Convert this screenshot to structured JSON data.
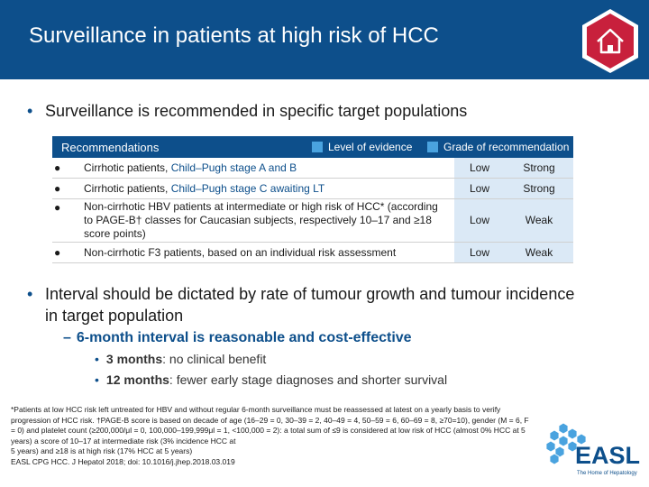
{
  "header": {
    "title": "Surveillance in patients at high risk of HCC"
  },
  "bullet1": "Surveillance is recommended in specific target populations",
  "table": {
    "heading": "Recommendations",
    "legend_level": "Level of evidence",
    "legend_grade": "Grade of recommendation",
    "rows": [
      {
        "text_a": "Cirrhotic patients, ",
        "text_b": "Child–Pugh stage A and B",
        "level": "Low",
        "grade": "Strong"
      },
      {
        "text_a": "Cirrhotic patients, ",
        "text_b": "Child–Pugh stage C awaiting LT",
        "level": "Low",
        "grade": "Strong"
      },
      {
        "text": "Non-cirrhotic HBV patients at intermediate or high risk of HCC* (according to PAGE-B† classes for Caucasian subjects, respectively 10–17 and ≥18 score points)",
        "level": "Low",
        "grade": "Weak"
      },
      {
        "text": "Non-cirrhotic F3 patients, based on an individual risk assessment",
        "level": "Low",
        "grade": "Weak"
      }
    ]
  },
  "bullet2": "Interval should be dictated by rate of tumour growth and tumour incidence in target population",
  "sub1": "6-month interval is reasonable and cost-effective",
  "sub_items": [
    {
      "bold": "3 months",
      "rest": ": no clinical benefit"
    },
    {
      "bold": "12 months",
      "rest": ": fewer early stage diagnoses and shorter survival"
    }
  ],
  "footnote": {
    "main": "*Patients at low HCC risk left untreated for HBV and without regular 6-month surveillance must be reassessed at latest on a yearly basis to verify progression of HCC risk. †PAGE-B score is based on decade of age (16–29 = 0, 30–39 = 2, 40–49 = 4, 50–59 = 6, 60–69 = 8, ≥70=10), gender (M = 6, F = 0) and platelet count (≥200,000/μl = 0, 100,000–199,999μl = 1, <100,000 = 2): a total sum of ≤9 is considered at low risk of HCC (almost 0% HCC at 5 years) a score of 10–17 at intermediate risk (3% incidence HCC at",
    "line2": "5 years) and ≥18 is at high risk (17% HCC at 5 years)",
    "citation": "EASL CPG HCC. J Hepatol 2018; doi: 10.1016/j.jhep.2018.03.019"
  },
  "logo": {
    "name": "EASL",
    "tagline": "The Home of Hepatology"
  },
  "colors": {
    "brand_blue": "#0d4f8b",
    "accent_blue": "#4aa3df",
    "home_red": "#c8203c"
  },
  "icons": {
    "home": "home-icon",
    "bullet": "bullet-dot"
  }
}
